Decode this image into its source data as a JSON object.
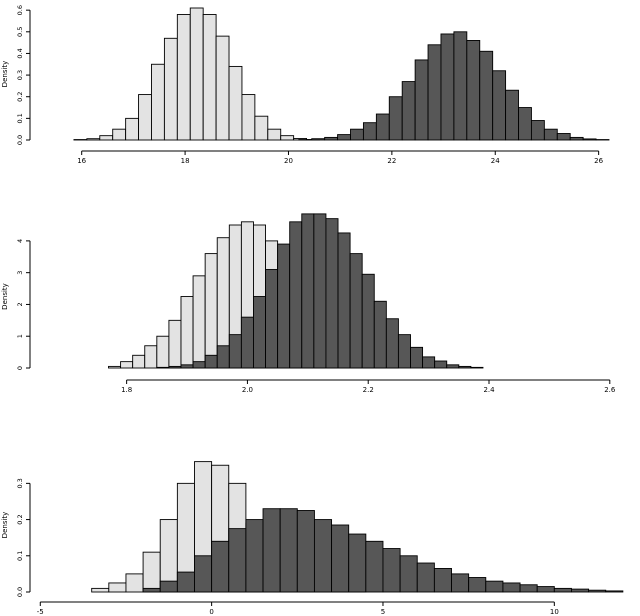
{
  "colors": {
    "light_fill": "#e3e3e3",
    "dark_fill": "#575757",
    "stroke": "#000000",
    "background": "#ffffff"
  },
  "chart_data": [
    {
      "type": "histogram",
      "ylabel": "Density",
      "xlim": [
        15.0,
        26.8
      ],
      "ylim": [
        0,
        0.61
      ],
      "xticks": [
        16,
        18,
        20,
        22,
        24,
        26
      ],
      "xtick_labels": [
        "16",
        "18",
        "20",
        "22",
        "24",
        "26"
      ],
      "yticks": [
        0.0,
        0.1,
        0.2,
        0.3,
        0.4,
        0.5,
        0.6
      ],
      "ytick_labels": [
        "0.0",
        "0.1",
        "0.2",
        "0.3",
        "0.4",
        "0.5",
        "0.6"
      ],
      "series": [
        {
          "fill": "light",
          "bin_start": 15.6,
          "bin_width": 0.25,
          "values": [
            0.0,
            0.002,
            0.006,
            0.02,
            0.05,
            0.1,
            0.21,
            0.35,
            0.47,
            0.58,
            0.61,
            0.58,
            0.48,
            0.34,
            0.21,
            0.11,
            0.05,
            0.02,
            0.007,
            0.002
          ]
        },
        {
          "fill": "dark",
          "bin_start": 20.2,
          "bin_width": 0.25,
          "values": [
            0.002,
            0.006,
            0.012,
            0.025,
            0.05,
            0.08,
            0.12,
            0.2,
            0.27,
            0.37,
            0.44,
            0.49,
            0.5,
            0.46,
            0.41,
            0.32,
            0.23,
            0.15,
            0.09,
            0.05,
            0.03,
            0.012,
            0.005,
            0.002
          ]
        }
      ]
    },
    {
      "type": "histogram",
      "ylabel": "Density",
      "xlim": [
        1.64,
        2.65
      ],
      "ylim": [
        0,
        4.5
      ],
      "xticks": [
        1.8,
        2.0,
        2.2,
        2.4,
        2.6
      ],
      "xtick_labels": [
        "1.8",
        "2.0",
        "2.2",
        "2.4",
        "2.6"
      ],
      "yticks": [
        0,
        1,
        2,
        3,
        4
      ],
      "ytick_labels": [
        "0",
        "1",
        "2",
        "3",
        "4"
      ],
      "series": [
        {
          "fill": "light",
          "bin_start": 1.77,
          "bin_width": 0.02,
          "values": [
            0.05,
            0.2,
            0.4,
            0.7,
            1.0,
            1.5,
            2.25,
            2.9,
            3.6,
            4.1,
            4.5,
            4.6,
            4.5,
            4.0,
            3.4,
            2.8,
            1.95,
            1.35,
            0.9,
            0.55,
            0.35,
            0.15,
            0.05,
            0.02
          ]
        },
        {
          "fill": "dark",
          "bin_start": 1.85,
          "bin_width": 0.02,
          "values": [
            0.02,
            0.05,
            0.1,
            0.2,
            0.4,
            0.7,
            1.05,
            1.6,
            2.25,
            3.1,
            3.9,
            4.6,
            4.85,
            4.85,
            4.7,
            4.25,
            3.6,
            2.95,
            2.1,
            1.55,
            1.05,
            0.65,
            0.35,
            0.22,
            0.1,
            0.05,
            0.02
          ]
        }
      ]
    },
    {
      "type": "histogram",
      "ylabel": "Density",
      "xlim": [
        -5.3,
        12.5
      ],
      "ylim": [
        0,
        0.37
      ],
      "xticks": [
        -5,
        0,
        5,
        10
      ],
      "xtick_labels": [
        "-5",
        "0",
        "5",
        "10"
      ],
      "yticks": [
        0.0,
        0.1,
        0.2,
        0.3
      ],
      "ytick_labels": [
        "0.0",
        "0.1",
        "0.2",
        "0.3"
      ],
      "series": [
        {
          "fill": "light",
          "bin_start": -3.5,
          "bin_width": 0.5,
          "values": [
            0.01,
            0.025,
            0.05,
            0.11,
            0.2,
            0.3,
            0.36,
            0.35,
            0.3,
            0.19,
            0.1,
            0.05,
            0.02,
            0.008,
            0.004,
            0.002
          ]
        },
        {
          "fill": "dark",
          "bin_start": -2.0,
          "bin_width": 0.5,
          "values": [
            0.01,
            0.03,
            0.055,
            0.1,
            0.14,
            0.175,
            0.2,
            0.23,
            0.23,
            0.225,
            0.2,
            0.185,
            0.16,
            0.14,
            0.12,
            0.1,
            0.08,
            0.065,
            0.05,
            0.04,
            0.03,
            0.025,
            0.02,
            0.015,
            0.01,
            0.008,
            0.005,
            0.003
          ]
        }
      ]
    }
  ]
}
